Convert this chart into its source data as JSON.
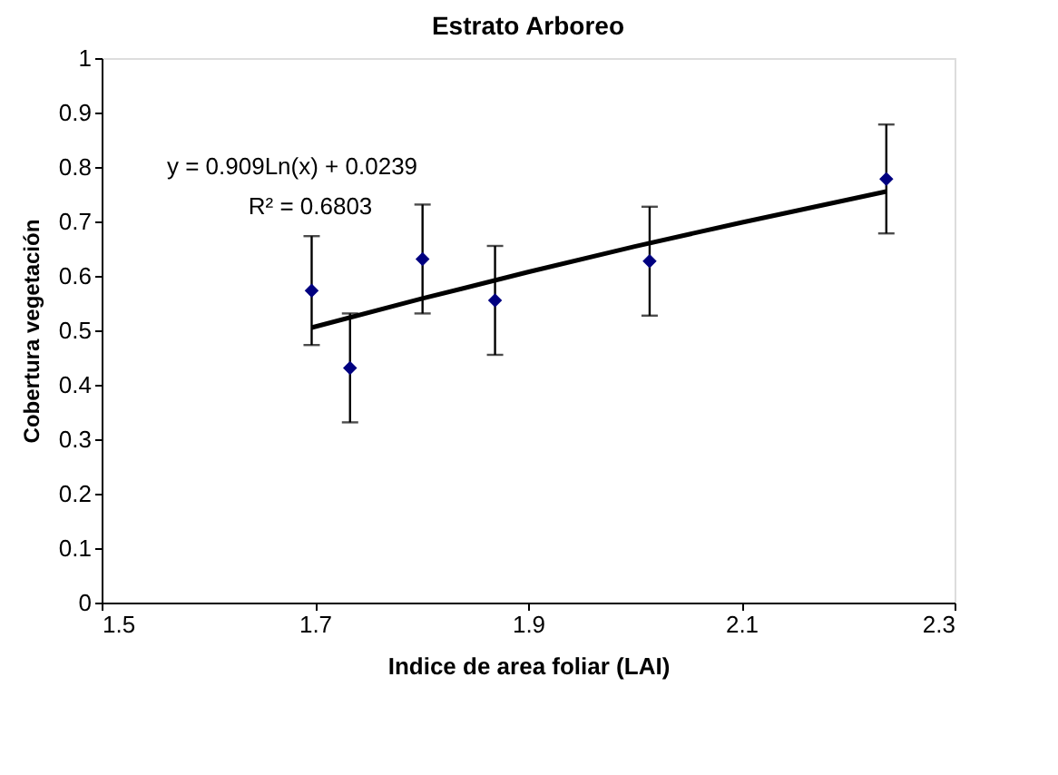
{
  "chart_data": {
    "type": "scatter",
    "title": "Estrato Arboreo",
    "xlabel": "Indice de area foliar (LAI)",
    "ylabel": "Cobertura vegetación",
    "xlim": [
      1.5,
      2.3
    ],
    "xticks": [
      1.5,
      1.7,
      1.9,
      2.1,
      2.3
    ],
    "ylim": [
      0,
      1
    ],
    "yticks": [
      0,
      0.1,
      0.2,
      0.3,
      0.4,
      0.5,
      0.6,
      0.7,
      0.8,
      0.9,
      1
    ],
    "marker": "diamond",
    "series": [
      {
        "color": "#000080",
        "x": [
          1.697,
          1.733,
          1.801,
          1.869,
          2.014,
          2.236
        ],
        "values": [
          0.573,
          0.431,
          0.631,
          0.555,
          0.627,
          0.778
        ],
        "errors": [
          0.1,
          0.1,
          0.1,
          0.1,
          0.1,
          0.1
        ]
      },
      {
        "type": "line",
        "color": "#000000",
        "marker": "none",
        "line_style": "solid",
        "x": [
          1.697,
          1.8,
          1.9,
          2.0,
          2.1,
          2.236
        ],
        "values": [
          0.505,
          0.558,
          0.607,
          0.654,
          0.698,
          0.755
        ]
      }
    ],
    "annotations": [
      "y = 0.909Ln(x) + 0.0239",
      "R² = 0.6803"
    ]
  }
}
